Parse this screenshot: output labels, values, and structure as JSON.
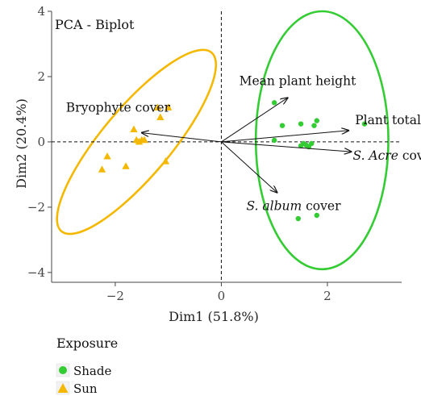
{
  "chart_data": {
    "type": "scatter",
    "title": "PCA - Biplot",
    "xlabel": "Dim1 (51.8%)",
    "ylabel": "Dim2 (20.4%)",
    "xlim": [
      -3.2,
      3.4
    ],
    "ylim": [
      -4.3,
      4.0
    ],
    "xticks": [
      -2,
      0,
      2
    ],
    "yticks": [
      -4,
      -2,
      0,
      2,
      4
    ],
    "xtick_labels": [
      "−2",
      "0",
      "2"
    ],
    "ytick_labels": [
      "−4",
      "−2",
      "0",
      "2",
      "4"
    ],
    "grid": false,
    "reference_lines": {
      "x": 0,
      "y": 0,
      "style": "dashed"
    },
    "legend": {
      "title": "Exposure",
      "position": "bottom-left"
    },
    "series": [
      {
        "name": "Shade",
        "marker": "circle",
        "color": "#33cc33",
        "points": [
          {
            "x": 1.0,
            "y": 1.2
          },
          {
            "x": 1.8,
            "y": 0.65
          },
          {
            "x": 1.15,
            "y": 0.5
          },
          {
            "x": 1.5,
            "y": 0.55
          },
          {
            "x": 1.75,
            "y": 0.5
          },
          {
            "x": 2.7,
            "y": 0.55
          },
          {
            "x": 1.0,
            "y": 0.05
          },
          {
            "x": 1.55,
            "y": -0.05
          },
          {
            "x": 1.6,
            "y": -0.1
          },
          {
            "x": 1.65,
            "y": -0.15
          },
          {
            "x": 1.5,
            "y": -0.12
          },
          {
            "x": 1.7,
            "y": -0.05
          },
          {
            "x": 1.45,
            "y": -2.35
          },
          {
            "x": 1.8,
            "y": -2.25
          }
        ],
        "ellipse": {
          "cx": 1.9,
          "cy": 0.05,
          "rx": 1.25,
          "ry": 3.95,
          "angle": 0
        }
      },
      {
        "name": "Sun",
        "marker": "triangle",
        "color": "#f5b800",
        "points": [
          {
            "x": -1.2,
            "y": 1.05
          },
          {
            "x": -1.0,
            "y": 1.05
          },
          {
            "x": -1.15,
            "y": 0.75
          },
          {
            "x": -1.65,
            "y": 0.38
          },
          {
            "x": -1.6,
            "y": 0.05
          },
          {
            "x": -1.5,
            "y": 0.05
          },
          {
            "x": -1.55,
            "y": 0.0
          },
          {
            "x": -1.45,
            "y": 0.05
          },
          {
            "x": -2.15,
            "y": -0.45
          },
          {
            "x": -2.25,
            "y": -0.85
          },
          {
            "x": -1.8,
            "y": -0.75
          },
          {
            "x": -1.05,
            "y": -0.6
          }
        ],
        "ellipse": {
          "cx": -1.6,
          "cy": 0.0,
          "rx": 2.2,
          "ry": 1.05,
          "angle": 50
        }
      }
    ],
    "vectors": [
      {
        "label": "Mean plant height",
        "label_italic_part": "",
        "x": 1.25,
        "y": 1.35
      },
      {
        "label": "Plant total cover",
        "label_italic_part": "",
        "x": 2.4,
        "y": 0.35
      },
      {
        "label": " cover",
        "label_italic_part": "S. Acre",
        "x": 2.45,
        "y": -0.3
      },
      {
        "label": " cover",
        "label_italic_part": "S. album",
        "x": 1.05,
        "y": -1.55
      },
      {
        "label": "Bryophyte cover",
        "label_italic_part": "",
        "x": -1.5,
        "y": 0.28
      }
    ]
  }
}
